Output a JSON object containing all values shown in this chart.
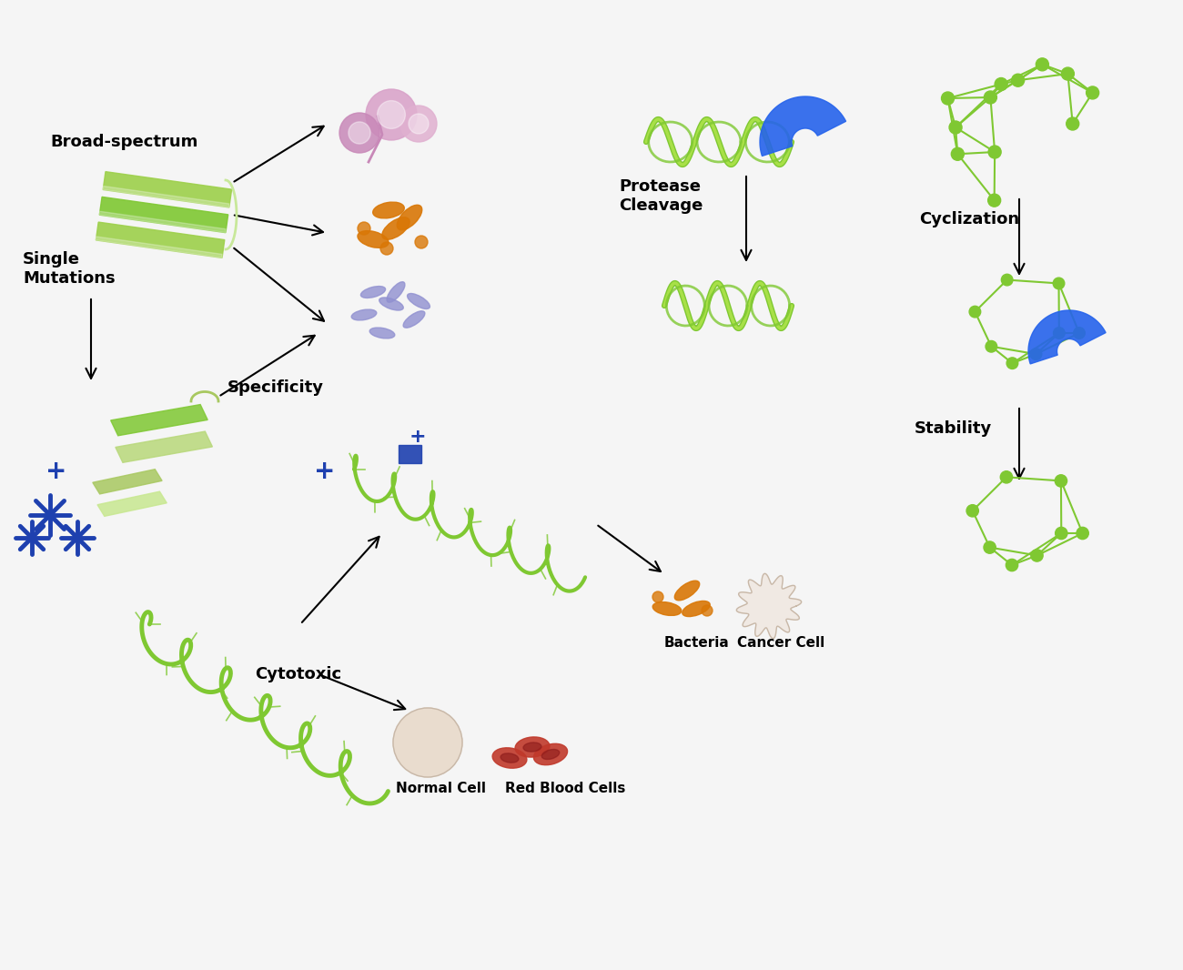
{
  "bg_color": "#f5f5f5",
  "labels": {
    "broad_spectrum": "Broad-spectrum",
    "single_mutations": "Single\nMutations",
    "specificity": "Specificity",
    "protease_cleavage": "Protease\nCleavage",
    "cyclization": "Cyclization",
    "stability": "Stability",
    "cytotoxic": "Cytotoxic",
    "bacteria": "Bacteria",
    "cancer_cell": "Cancer Cell",
    "normal_cell": "Normal Cell",
    "red_blood_cells": "Red Blood Cells"
  },
  "label_fontsize": 13,
  "arrow_color": "#1a1a1a",
  "green_light": "#7fc832",
  "green_dark": "#5a9a20",
  "blue_dark": "#1e3a8a",
  "blue_medium": "#2563eb",
  "blue_shape": "#3b82f6",
  "purple_cell": "#c084fc",
  "orange_bacteria": "#d97706",
  "lavender_bacteria": "#a5b4fc",
  "pink_cell": "#f9a8d4",
  "red_blood": "#b91c1c",
  "beige_cell": "#e8d5c4",
  "tan_cell": "#d4b896"
}
